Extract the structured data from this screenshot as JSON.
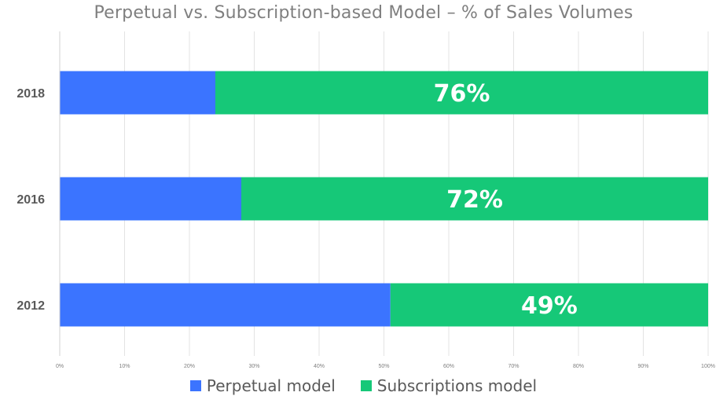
{
  "chart_data": {
    "type": "bar",
    "orientation": "horizontal",
    "stacked": true,
    "title": "Perpetual vs. Subscription-based Model – % of Sales Volumes",
    "categories": [
      "2018",
      "2016",
      "2012"
    ],
    "series": [
      {
        "name": "Perpetual model",
        "values": [
          24,
          28,
          51
        ],
        "color": "#3b74ff"
      },
      {
        "name": "Subscriptions model",
        "values": [
          76,
          72,
          49
        ],
        "color": "#16c878"
      }
    ],
    "data_labels": [
      "76%",
      "72%",
      "49%"
    ],
    "x_ticks": [
      "0%",
      "10%",
      "20%",
      "30%",
      "40%",
      "50%",
      "60%",
      "70%",
      "80%",
      "90%",
      "100%"
    ],
    "xlim": [
      0,
      100
    ],
    "grid": true,
    "legend": "bottom"
  }
}
